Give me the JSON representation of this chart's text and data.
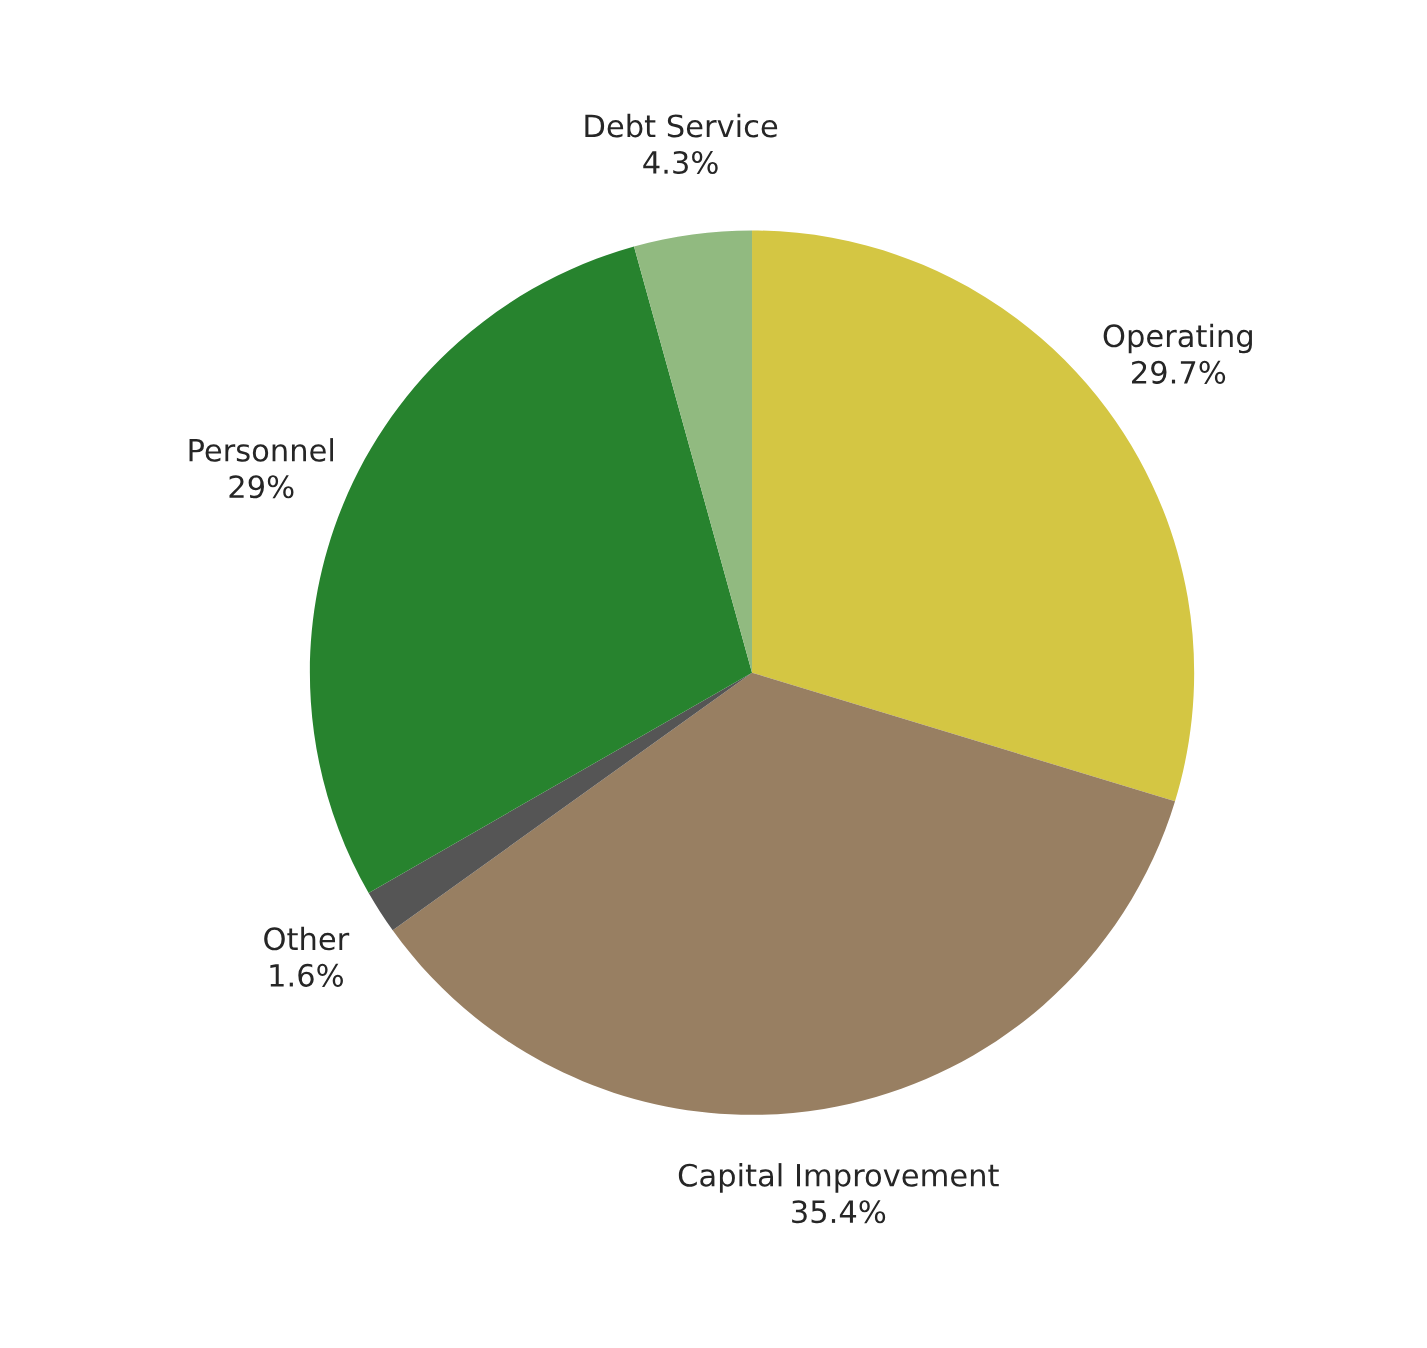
{
  "chart_data": {
    "type": "pie",
    "categories": [
      "Operating",
      "Capital Improvement",
      "Other",
      "Personnel",
      "Debt Service"
    ],
    "values": [
      29.7,
      35.4,
      1.6,
      29,
      4.3
    ],
    "value_labels": [
      "29.7%",
      "35.4%",
      "1.6%",
      "29%",
      "4.3%"
    ],
    "colors": [
      "#d4c643",
      "#987f62",
      "#555555",
      "#27832e",
      "#91ba80"
    ]
  }
}
